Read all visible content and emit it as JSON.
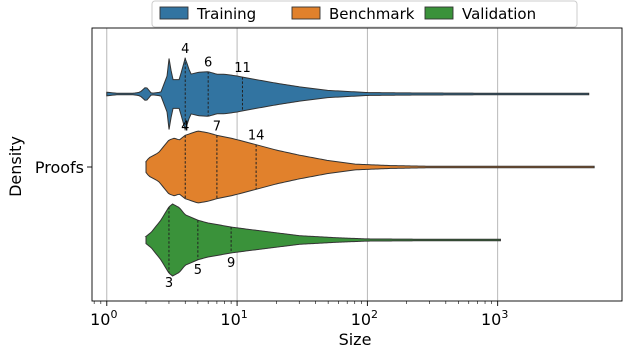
{
  "chart_data": {
    "type": "violin",
    "xlabel": "Size",
    "ylabel": "Density",
    "xscale": "log",
    "xlim": [
      0.77,
      9000
    ],
    "grid": "x-major",
    "legend_position": "top-center",
    "ytick": "Proofs",
    "xticks": [
      {
        "value": 1,
        "base": "10",
        "exp": "0"
      },
      {
        "value": 10,
        "base": "10",
        "exp": "1"
      },
      {
        "value": 100,
        "base": "10",
        "exp": "2"
      },
      {
        "value": 1000,
        "base": "10",
        "exp": "3"
      }
    ],
    "series": [
      {
        "name": "Training",
        "color": "#3274a1",
        "min": 1,
        "max": 5000,
        "quartiles": [
          4,
          6,
          11
        ],
        "quartile_labels": [
          "4",
          "6",
          "11"
        ],
        "label_side": "above",
        "density": [
          [
            1,
            0.05
          ],
          [
            1.2,
            0.02
          ],
          [
            1.6,
            0.02
          ],
          [
            1.8,
            0.05
          ],
          [
            2,
            0.2
          ],
          [
            2.2,
            0.02
          ],
          [
            2.6,
            0.05
          ],
          [
            2.9,
            0.5
          ],
          [
            3,
            1.0
          ],
          [
            3.2,
            0.4
          ],
          [
            3.6,
            0.4
          ],
          [
            4,
            1.0
          ],
          [
            4.4,
            0.55
          ],
          [
            5,
            0.6
          ],
          [
            6,
            0.62
          ],
          [
            7,
            0.55
          ],
          [
            8,
            0.55
          ],
          [
            10,
            0.5
          ],
          [
            11,
            0.47
          ],
          [
            14,
            0.4
          ],
          [
            20,
            0.3
          ],
          [
            30,
            0.2
          ],
          [
            50,
            0.1
          ],
          [
            100,
            0.04
          ],
          [
            200,
            0.03
          ],
          [
            1000,
            0.02
          ],
          [
            5000,
            0.02
          ]
        ]
      },
      {
        "name": "Benchmark",
        "color": "#e1812c",
        "min": 2,
        "max": 5500,
        "quartiles": [
          4,
          7,
          14
        ],
        "quartile_labels": [
          "4",
          "7",
          "14"
        ],
        "label_side": "above",
        "density": [
          [
            2,
            0.15
          ],
          [
            2.1,
            0.25
          ],
          [
            2.5,
            0.4
          ],
          [
            3,
            0.75
          ],
          [
            3.3,
            0.8
          ],
          [
            3.6,
            0.75
          ],
          [
            4,
            0.88
          ],
          [
            5,
            1.0
          ],
          [
            6,
            0.95
          ],
          [
            7,
            0.88
          ],
          [
            9,
            0.8
          ],
          [
            11,
            0.72
          ],
          [
            14,
            0.62
          ],
          [
            20,
            0.47
          ],
          [
            30,
            0.33
          ],
          [
            50,
            0.18
          ],
          [
            80,
            0.08
          ],
          [
            150,
            0.04
          ],
          [
            300,
            0.02
          ],
          [
            5500,
            0.02
          ]
        ]
      },
      {
        "name": "Validation",
        "color": "#3a923a",
        "min": 2,
        "max": 1050,
        "quartiles": [
          3,
          5,
          9
        ],
        "quartile_labels": [
          "3",
          "5",
          "9"
        ],
        "label_side": "below",
        "density": [
          [
            2,
            0.1
          ],
          [
            2.2,
            0.22
          ],
          [
            2.6,
            0.55
          ],
          [
            3,
            0.92
          ],
          [
            3.2,
            1.0
          ],
          [
            3.6,
            0.9
          ],
          [
            4,
            0.7
          ],
          [
            5,
            0.55
          ],
          [
            6,
            0.47
          ],
          [
            7,
            0.43
          ],
          [
            9,
            0.36
          ],
          [
            12,
            0.3
          ],
          [
            20,
            0.2
          ],
          [
            30,
            0.12
          ],
          [
            60,
            0.06
          ],
          [
            100,
            0.03
          ],
          [
            300,
            0.02
          ],
          [
            1050,
            0.02
          ]
        ]
      }
    ]
  }
}
